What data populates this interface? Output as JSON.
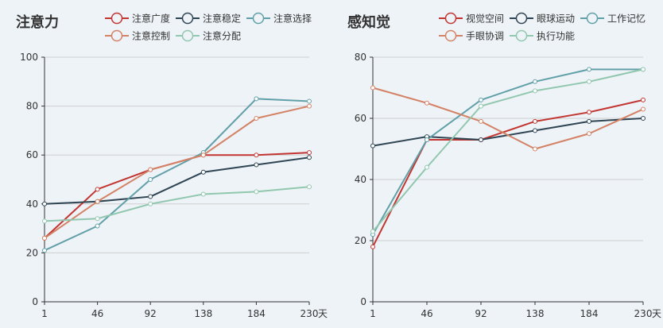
{
  "chart_data": [
    {
      "type": "line",
      "title": "注意力",
      "x": [
        "1",
        "46",
        "92",
        "138",
        "184",
        "230"
      ],
      "x_unit": "天",
      "ylim": [
        0,
        100
      ],
      "yticks": [
        0,
        20,
        40,
        60,
        80,
        100
      ],
      "grid": true,
      "legend_position": "top-right",
      "series": [
        {
          "name": "注意广度",
          "color": "#c23531",
          "values": [
            26,
            46,
            54,
            60,
            60,
            61
          ]
        },
        {
          "name": "注意稳定",
          "color": "#2f4554",
          "values": [
            40,
            41,
            43,
            53,
            56,
            59
          ]
        },
        {
          "name": "注意选择",
          "color": "#61a0a8",
          "values": [
            21,
            31,
            50,
            61,
            83,
            82
          ]
        },
        {
          "name": "注意控制",
          "color": "#d48265",
          "values": [
            26,
            41,
            54,
            60,
            75,
            80
          ]
        },
        {
          "name": "注意分配",
          "color": "#91c7ae",
          "values": [
            33,
            34,
            40,
            44,
            45,
            47
          ]
        }
      ]
    },
    {
      "type": "line",
      "title": "感知觉",
      "x": [
        "1",
        "46",
        "92",
        "138",
        "184",
        "230"
      ],
      "x_unit": "天",
      "ylim": [
        0,
        80
      ],
      "yticks": [
        0,
        20,
        40,
        60,
        80
      ],
      "grid": true,
      "legend_position": "top-right",
      "series": [
        {
          "name": "视觉空间",
          "color": "#c23531",
          "values": [
            18,
            53,
            53,
            59,
            62,
            66
          ]
        },
        {
          "name": "眼球运动",
          "color": "#2f4554",
          "values": [
            51,
            54,
            53,
            56,
            59,
            60
          ]
        },
        {
          "name": "工作记忆",
          "color": "#61a0a8",
          "values": [
            22,
            53,
            66,
            72,
            76,
            76
          ]
        },
        {
          "name": "手眼协调",
          "color": "#d48265",
          "values": [
            70,
            65,
            59,
            50,
            55,
            63
          ]
        },
        {
          "name": "执行功能",
          "color": "#91c7ae",
          "values": [
            23,
            44,
            64,
            69,
            72,
            76
          ]
        }
      ]
    }
  ]
}
